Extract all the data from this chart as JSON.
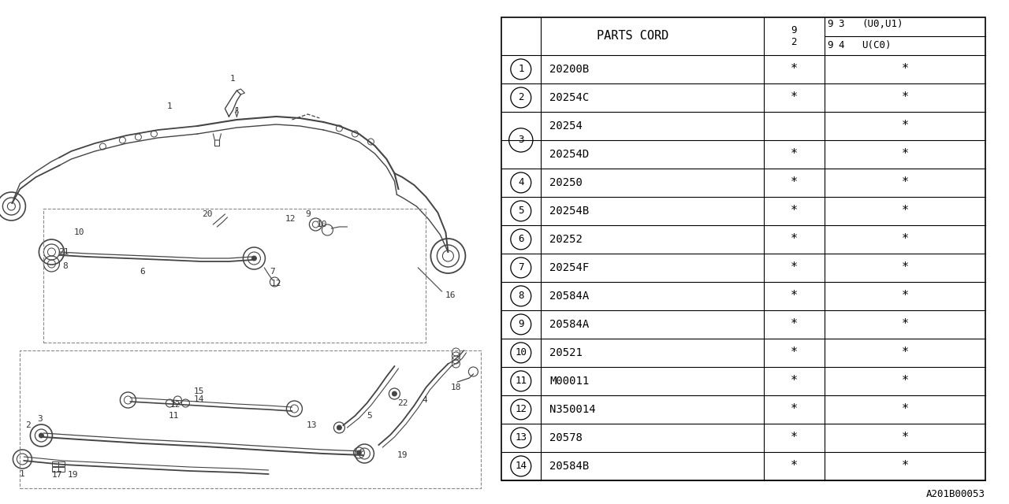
{
  "bg_color": "#ffffff",
  "table_border_color": "#000000",
  "text_color": "#000000",
  "parts": [
    {
      "num": "1",
      "code": "20200B",
      "col1": "*",
      "col2": "*",
      "share_num": false
    },
    {
      "num": "2",
      "code": "20254C",
      "col1": "*",
      "col2": "*",
      "share_num": false
    },
    {
      "num": "3",
      "code": "20254",
      "col1": "",
      "col2": "*",
      "share_num": true,
      "share_top": true
    },
    {
      "num": "3",
      "code": "20254D",
      "col1": "*",
      "col2": "*",
      "share_num": true,
      "share_top": false
    },
    {
      "num": "4",
      "code": "20250",
      "col1": "*",
      "col2": "*",
      "share_num": false
    },
    {
      "num": "5",
      "code": "20254B",
      "col1": "*",
      "col2": "*",
      "share_num": false
    },
    {
      "num": "6",
      "code": "20252",
      "col1": "*",
      "col2": "*",
      "share_num": false
    },
    {
      "num": "7",
      "code": "20254F",
      "col1": "*",
      "col2": "*",
      "share_num": false
    },
    {
      "num": "8",
      "code": "20584A",
      "col1": "*",
      "col2": "*",
      "share_num": false
    },
    {
      "num": "9",
      "code": "20584A",
      "col1": "*",
      "col2": "*",
      "share_num": false
    },
    {
      "num": "10",
      "code": "20521",
      "col1": "*",
      "col2": "*",
      "share_num": false
    },
    {
      "num": "11",
      "code": "M00011",
      "col1": "*",
      "col2": "*",
      "share_num": false
    },
    {
      "num": "12",
      "code": "N350014",
      "col1": "*",
      "col2": "*",
      "share_num": false
    },
    {
      "num": "13",
      "code": "20578",
      "col1": "*",
      "col2": "*",
      "share_num": false
    },
    {
      "num": "14",
      "code": "20584B",
      "col1": "*",
      "col2": "*",
      "share_num": false
    }
  ],
  "ref_code": "A201B00053",
  "header_label": "PARTS CORD",
  "col2_header": [
    "9",
    "2"
  ],
  "col3_header_top": [
    "9",
    "3",
    "(U0,U1)"
  ],
  "col3_header_bot": [
    "9",
    "4",
    "U(C0)"
  ]
}
